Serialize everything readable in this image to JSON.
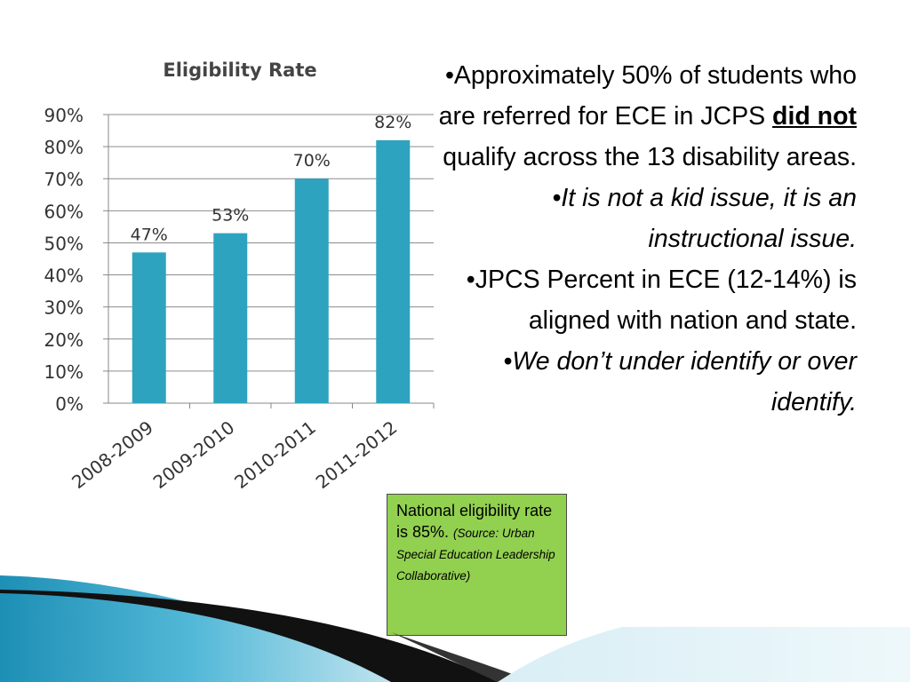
{
  "chart_data": {
    "type": "bar",
    "title": "Eligibility Rate",
    "categories": [
      "2008-2009",
      "2009-2010",
      "2010-2011",
      "2011-2012"
    ],
    "values": [
      47,
      53,
      70,
      82
    ],
    "data_labels": [
      "47%",
      "53%",
      "70%",
      "82%"
    ],
    "y_ticks": [
      "0%",
      "10%",
      "20%",
      "30%",
      "40%",
      "50%",
      "60%",
      "70%",
      "80%",
      "90%"
    ],
    "ylim": [
      0,
      90
    ],
    "xlabel": "",
    "ylabel": "",
    "grid": true,
    "bar_color": "#2ea3bf"
  },
  "bullets": {
    "b1_pre": "•Approximately 50% of students who are referred for ECE in JCPS ",
    "b1_em": "did not",
    "b1_post": " qualify across the 13 disability areas.",
    "b2": "•It is not a kid issue, it is an instructional issue.",
    "b3": "•JPCS Percent in ECE (12-14%) is aligned with nation and state.",
    "b4": "•We don’t under identify or over identify."
  },
  "note": {
    "main": "National eligibility rate is 85%.",
    "source": "(Source: Urban Special Education Leadership Collaborative)"
  },
  "colors": {
    "note_bg": "#92d050",
    "deco_blue": "#3aa7c9"
  }
}
